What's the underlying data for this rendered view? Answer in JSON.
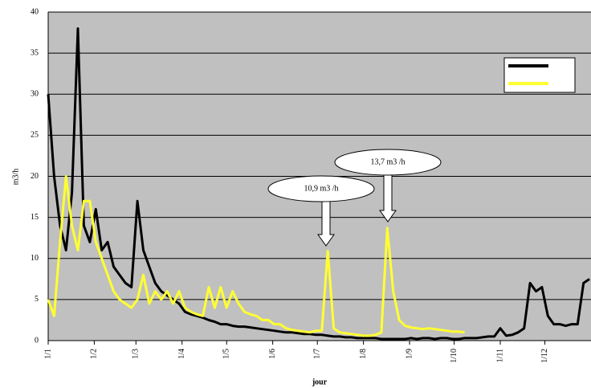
{
  "chart_data": {
    "type": "line",
    "y_label": "m3/h",
    "x_label": "jour",
    "xlim": [
      0,
      365
    ],
    "ylim": [
      0,
      40
    ],
    "yticks": [
      0,
      5,
      10,
      15,
      20,
      25,
      30,
      35,
      40
    ],
    "xticks": [
      {
        "value": 0,
        "label": "1/1"
      },
      {
        "value": 31,
        "label": "1/2"
      },
      {
        "value": 59,
        "label": "1/3"
      },
      {
        "value": 90,
        "label": "1/4"
      },
      {
        "value": 120,
        "label": "1/5"
      },
      {
        "value": 151,
        "label": "1/6"
      },
      {
        "value": 181,
        "label": "1/7"
      },
      {
        "value": 212,
        "label": "1/8"
      },
      {
        "value": 243,
        "label": "1/9"
      },
      {
        "value": 273,
        "label": "1/10"
      },
      {
        "value": 304,
        "label": "1/11"
      },
      {
        "value": 334,
        "label": "1/12"
      }
    ],
    "grid": true,
    "legend": "upper right",
    "annotations": [
      "10,9 m3 /h",
      "13,7 m3 /h"
    ],
    "x": [
      0,
      4,
      8,
      12,
      16,
      20,
      24,
      28,
      32,
      36,
      40,
      44,
      48,
      52,
      56,
      60,
      64,
      68,
      72,
      76,
      80,
      84,
      88,
      92,
      96,
      100,
      104,
      108,
      112,
      116,
      120,
      124,
      128,
      132,
      136,
      140,
      144,
      148,
      152,
      156,
      160,
      164,
      168,
      172,
      176,
      180,
      184,
      188,
      192,
      196,
      200,
      204,
      208,
      212,
      216,
      220,
      224,
      228,
      232,
      236,
      240,
      244,
      248,
      252,
      256,
      260,
      264,
      268,
      272,
      276,
      280,
      284,
      288,
      292,
      296,
      300,
      304,
      308,
      312,
      316,
      320,
      324,
      328,
      332,
      336,
      340,
      344,
      348,
      352,
      356,
      360,
      364
    ],
    "series": [
      {
        "color": "#000000",
        "values": [
          30,
          20,
          14,
          11,
          18,
          38,
          14,
          12,
          16,
          11,
          12,
          9,
          8,
          7,
          6.5,
          17,
          11,
          9,
          7,
          6,
          5.5,
          5,
          4.5,
          3.5,
          3.2,
          3,
          2.8,
          2.5,
          2.3,
          2,
          2,
          1.8,
          1.7,
          1.7,
          1.6,
          1.5,
          1.4,
          1.3,
          1.2,
          1.1,
          1,
          1,
          0.9,
          0.8,
          0.8,
          0.7,
          0.7,
          0.6,
          0.5,
          0.5,
          0.4,
          0.4,
          0.3,
          0.3,
          0.3,
          0.3,
          0.2,
          0.2,
          0.2,
          0.2,
          0.2,
          0.3,
          0.2,
          0.3,
          0.3,
          0.2,
          0.3,
          0.3,
          0.2,
          0.2,
          0.3,
          0.3,
          0.3,
          0.4,
          0.5,
          0.5,
          1.5,
          0.6,
          0.7,
          1,
          1.5,
          7,
          6,
          6.5,
          3,
          2,
          2,
          1.8,
          2,
          2,
          7,
          7.5
        ]
      },
      {
        "color": "#ffff33",
        "values": [
          5,
          3,
          12,
          20,
          14,
          11,
          17,
          17,
          12,
          10,
          8,
          6,
          5,
          4.5,
          4,
          5,
          8,
          4.5,
          6,
          5,
          6,
          4.5,
          6,
          4,
          3.5,
          3.2,
          3,
          6.5,
          4,
          6.5,
          4,
          6,
          4.5,
          3.5,
          3.2,
          3,
          2.5,
          2.5,
          2,
          2,
          1.5,
          1.3,
          1.2,
          1.1,
          1,
          1.2,
          1.2,
          10.9,
          1.5,
          1,
          0.9,
          0.8,
          0.7,
          0.6,
          0.6,
          0.7,
          1,
          13.7,
          6,
          2.5,
          1.8,
          1.6,
          1.5,
          1.4,
          1.5,
          1.4,
          1.3,
          1.2,
          1.1,
          1.1,
          1,
          null,
          null,
          null,
          null,
          null,
          null,
          null,
          null,
          null,
          null,
          null,
          null,
          null,
          null,
          null,
          null,
          null,
          null,
          null,
          null,
          null
        ]
      }
    ]
  }
}
